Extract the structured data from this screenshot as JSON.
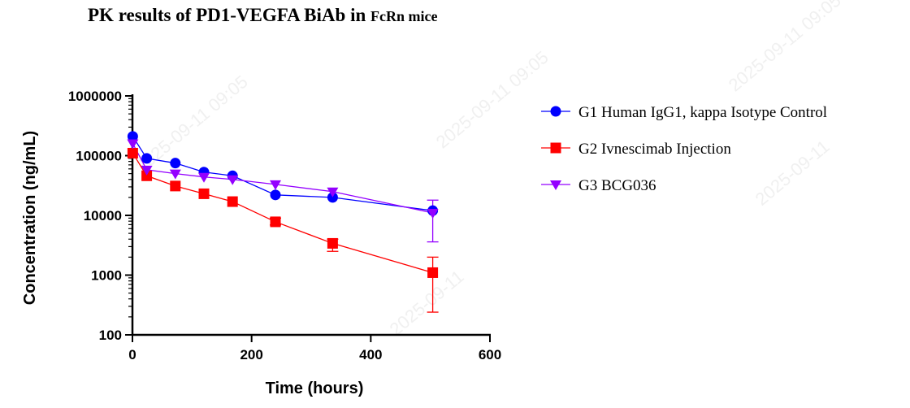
{
  "title": "PK results of PD1-VEGFA BiAb in",
  "title_suffix": "FcRn mice",
  "watermarks": [
    "2025-09-11 09:05",
    "2025-09-11 09:05",
    "2025-09-11",
    "2025-09-11 09:05",
    "2025-09-11"
  ],
  "chart_data": {
    "type": "line",
    "xlabel": "Time (hours)",
    "ylabel": "Concentration (ng/mL)",
    "xlim": [
      0,
      600
    ],
    "x_ticks": [
      0,
      200,
      400,
      600
    ],
    "x_tick_labels": [
      "0",
      "200",
      "400",
      "600"
    ],
    "y_scale": "log",
    "ylim": [
      100,
      1000000
    ],
    "y_ticks": [
      100,
      1000,
      10000,
      100000,
      1000000
    ],
    "y_tick_labels": [
      "100",
      "1000",
      "10000",
      "100000",
      "1000000"
    ],
    "grid": false,
    "legend_position": "right",
    "x": [
      0.5,
      24,
      72,
      120,
      168,
      240,
      336,
      504
    ],
    "series": [
      {
        "name": "G1 Human IgG1, kappa Isotype Control",
        "color": "#0000ff",
        "marker": "circle",
        "values": [
          210000,
          90000,
          75000,
          53000,
          46000,
          22000,
          20000,
          12000
        ],
        "error": [
          [
            0,
            0
          ],
          [
            0,
            0
          ],
          [
            0,
            0
          ],
          [
            0,
            0
          ],
          [
            0,
            0
          ],
          [
            0,
            0
          ],
          [
            0,
            0
          ],
          [
            0,
            0
          ]
        ]
      },
      {
        "name": "G2 Ivnescimab Injection",
        "color": "#ff0000",
        "marker": "square",
        "values": [
          110000,
          46000,
          31000,
          23000,
          17000,
          7800,
          3400,
          1100
        ],
        "error": [
          [
            0,
            0
          ],
          [
            0,
            0
          ],
          [
            0,
            0
          ],
          [
            0,
            0
          ],
          [
            0,
            0
          ],
          [
            6900,
            9000
          ],
          [
            2500,
            4000
          ],
          [
            240,
            2000
          ]
        ]
      },
      {
        "name": "G3 BCG036",
        "color": "#9400ff",
        "marker": "triangle-down",
        "values": [
          160000,
          58000,
          50000,
          44000,
          40000,
          33000,
          25000,
          11000
        ],
        "error": [
          [
            0,
            0
          ],
          [
            0,
            0
          ],
          [
            0,
            0
          ],
          [
            0,
            0
          ],
          [
            0,
            0
          ],
          [
            0,
            0
          ],
          [
            0,
            0
          ],
          [
            3600,
            18000
          ]
        ]
      }
    ]
  }
}
